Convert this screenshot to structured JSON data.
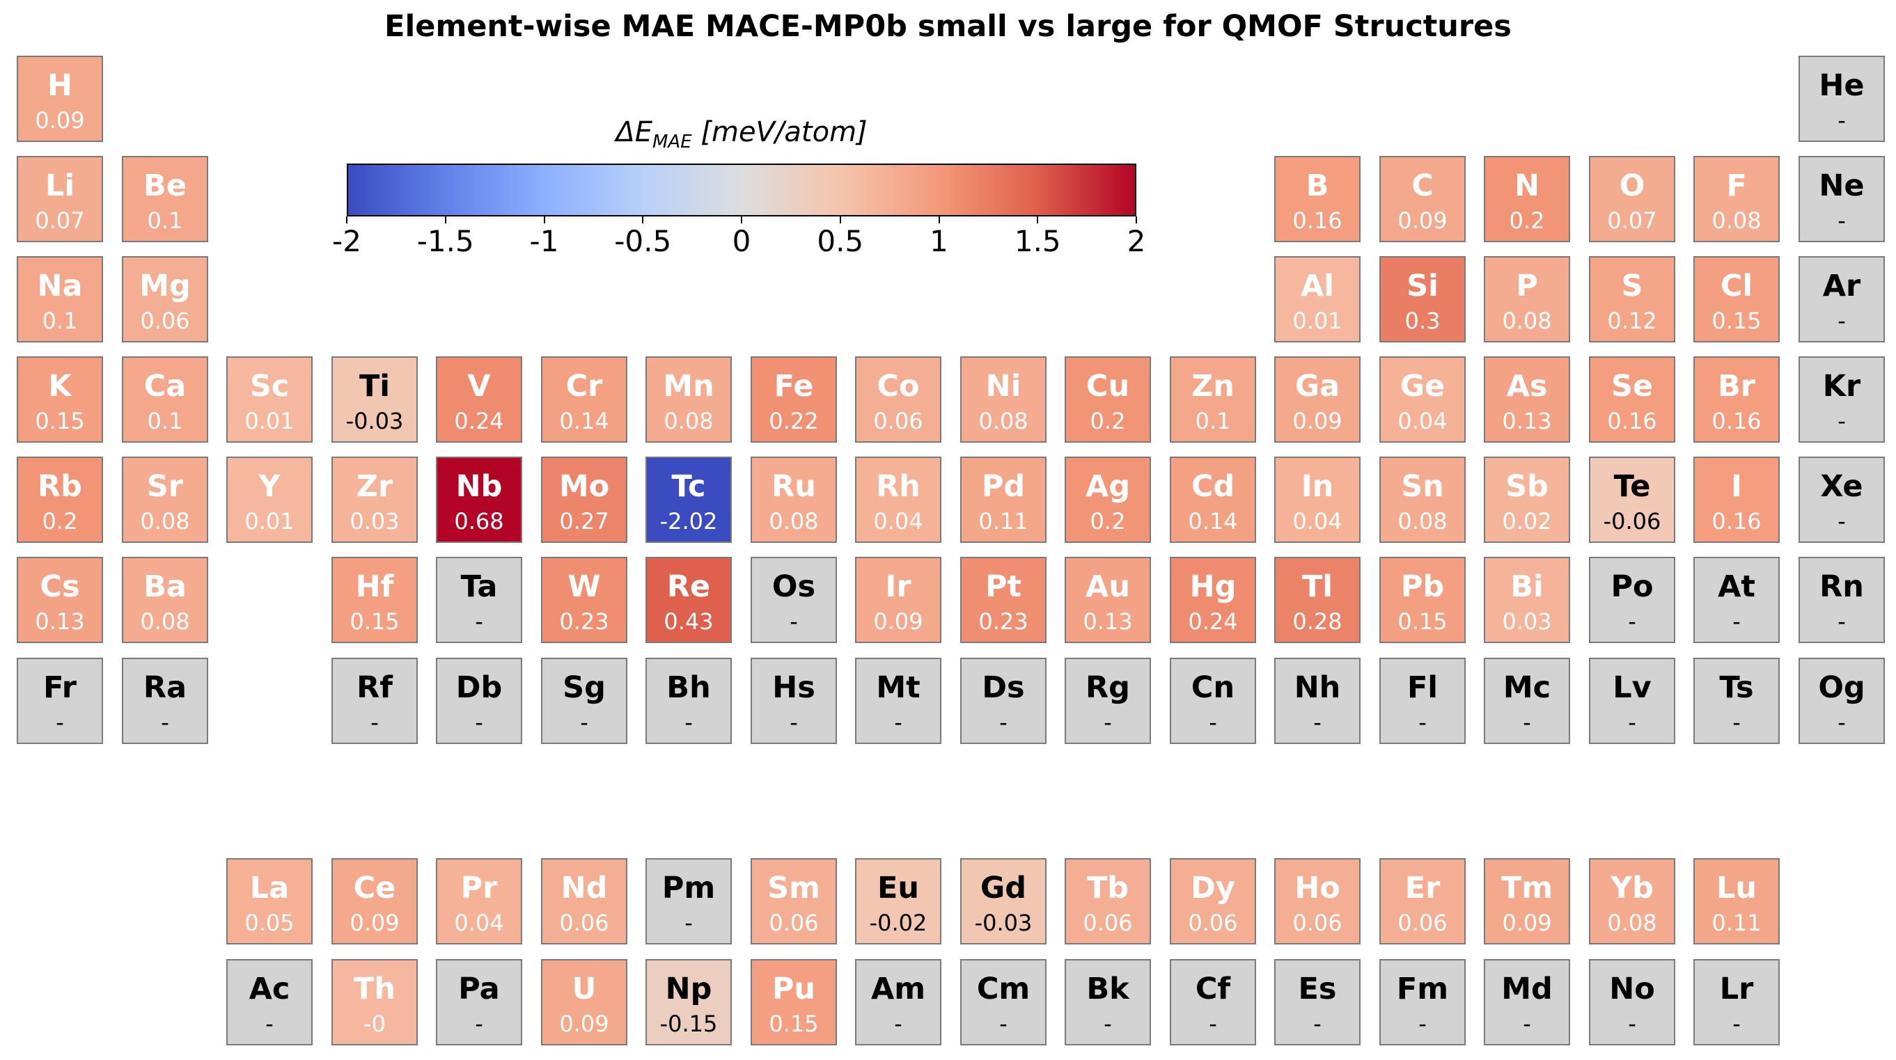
{
  "chart_data": {
    "type": "heatmap",
    "title": "Element-wise MAE MACE-MP0b small vs large for QMOF Structures",
    "colorbar": {
      "label_prefix": "ΔE",
      "label_subscript": "MAE",
      "label_unit": "[meV/atom]",
      "range": [
        -2,
        2
      ],
      "ticks": [
        -2,
        -1.5,
        -1,
        -0.5,
        0,
        0.5,
        1,
        1.5,
        2
      ],
      "tick_labels": [
        "-2",
        "-1.5",
        "-1",
        "-0.5",
        "0",
        "0.5",
        "1",
        "1.5",
        "2"
      ],
      "colormap": "coolwarm",
      "missing_color": "#d3d3d3"
    },
    "elements": [
      {
        "symbol": "H",
        "row": 1,
        "col": 1,
        "value": 0.09,
        "label": "0.09"
      },
      {
        "symbol": "He",
        "row": 1,
        "col": 18,
        "value": null,
        "label": "-"
      },
      {
        "symbol": "Li",
        "row": 2,
        "col": 1,
        "value": 0.07,
        "label": "0.07"
      },
      {
        "symbol": "Be",
        "row": 2,
        "col": 2,
        "value": 0.1,
        "label": "0.1"
      },
      {
        "symbol": "B",
        "row": 2,
        "col": 13,
        "value": 0.16,
        "label": "0.16"
      },
      {
        "symbol": "C",
        "row": 2,
        "col": 14,
        "value": 0.09,
        "label": "0.09"
      },
      {
        "symbol": "N",
        "row": 2,
        "col": 15,
        "value": 0.2,
        "label": "0.2"
      },
      {
        "symbol": "O",
        "row": 2,
        "col": 16,
        "value": 0.07,
        "label": "0.07"
      },
      {
        "symbol": "F",
        "row": 2,
        "col": 17,
        "value": 0.08,
        "label": "0.08"
      },
      {
        "symbol": "Ne",
        "row": 2,
        "col": 18,
        "value": null,
        "label": "-"
      },
      {
        "symbol": "Na",
        "row": 3,
        "col": 1,
        "value": 0.1,
        "label": "0.1"
      },
      {
        "symbol": "Mg",
        "row": 3,
        "col": 2,
        "value": 0.06,
        "label": "0.06"
      },
      {
        "symbol": "Al",
        "row": 3,
        "col": 13,
        "value": 0.01,
        "label": "0.01"
      },
      {
        "symbol": "Si",
        "row": 3,
        "col": 14,
        "value": 0.3,
        "label": "0.3"
      },
      {
        "symbol": "P",
        "row": 3,
        "col": 15,
        "value": 0.08,
        "label": "0.08"
      },
      {
        "symbol": "S",
        "row": 3,
        "col": 16,
        "value": 0.12,
        "label": "0.12"
      },
      {
        "symbol": "Cl",
        "row": 3,
        "col": 17,
        "value": 0.15,
        "label": "0.15"
      },
      {
        "symbol": "Ar",
        "row": 3,
        "col": 18,
        "value": null,
        "label": "-"
      },
      {
        "symbol": "K",
        "row": 4,
        "col": 1,
        "value": 0.15,
        "label": "0.15"
      },
      {
        "symbol": "Ca",
        "row": 4,
        "col": 2,
        "value": 0.1,
        "label": "0.1"
      },
      {
        "symbol": "Sc",
        "row": 4,
        "col": 3,
        "value": 0.01,
        "label": "0.01"
      },
      {
        "symbol": "Ti",
        "row": 4,
        "col": 4,
        "value": -0.03,
        "label": "-0.03"
      },
      {
        "symbol": "V",
        "row": 4,
        "col": 5,
        "value": 0.24,
        "label": "0.24"
      },
      {
        "symbol": "Cr",
        "row": 4,
        "col": 6,
        "value": 0.14,
        "label": "0.14"
      },
      {
        "symbol": "Mn",
        "row": 4,
        "col": 7,
        "value": 0.08,
        "label": "0.08"
      },
      {
        "symbol": "Fe",
        "row": 4,
        "col": 8,
        "value": 0.22,
        "label": "0.22"
      },
      {
        "symbol": "Co",
        "row": 4,
        "col": 9,
        "value": 0.06,
        "label": "0.06"
      },
      {
        "symbol": "Ni",
        "row": 4,
        "col": 10,
        "value": 0.08,
        "label": "0.08"
      },
      {
        "symbol": "Cu",
        "row": 4,
        "col": 11,
        "value": 0.2,
        "label": "0.2"
      },
      {
        "symbol": "Zn",
        "row": 4,
        "col": 12,
        "value": 0.1,
        "label": "0.1"
      },
      {
        "symbol": "Ga",
        "row": 4,
        "col": 13,
        "value": 0.09,
        "label": "0.09"
      },
      {
        "symbol": "Ge",
        "row": 4,
        "col": 14,
        "value": 0.04,
        "label": "0.04"
      },
      {
        "symbol": "As",
        "row": 4,
        "col": 15,
        "value": 0.13,
        "label": "0.13"
      },
      {
        "symbol": "Se",
        "row": 4,
        "col": 16,
        "value": 0.16,
        "label": "0.16"
      },
      {
        "symbol": "Br",
        "row": 4,
        "col": 17,
        "value": 0.16,
        "label": "0.16"
      },
      {
        "symbol": "Kr",
        "row": 4,
        "col": 18,
        "value": null,
        "label": "-"
      },
      {
        "symbol": "Rb",
        "row": 5,
        "col": 1,
        "value": 0.2,
        "label": "0.2"
      },
      {
        "symbol": "Sr",
        "row": 5,
        "col": 2,
        "value": 0.08,
        "label": "0.08"
      },
      {
        "symbol": "Y",
        "row": 5,
        "col": 3,
        "value": 0.01,
        "label": "0.01"
      },
      {
        "symbol": "Zr",
        "row": 5,
        "col": 4,
        "value": 0.03,
        "label": "0.03"
      },
      {
        "symbol": "Nb",
        "row": 5,
        "col": 5,
        "value": 0.68,
        "label": "0.68"
      },
      {
        "symbol": "Mo",
        "row": 5,
        "col": 6,
        "value": 0.27,
        "label": "0.27"
      },
      {
        "symbol": "Tc",
        "row": 5,
        "col": 7,
        "value": -2.02,
        "label": "-2.02"
      },
      {
        "symbol": "Ru",
        "row": 5,
        "col": 8,
        "value": 0.08,
        "label": "0.08"
      },
      {
        "symbol": "Rh",
        "row": 5,
        "col": 9,
        "value": 0.04,
        "label": "0.04"
      },
      {
        "symbol": "Pd",
        "row": 5,
        "col": 10,
        "value": 0.11,
        "label": "0.11"
      },
      {
        "symbol": "Ag",
        "row": 5,
        "col": 11,
        "value": 0.2,
        "label": "0.2"
      },
      {
        "symbol": "Cd",
        "row": 5,
        "col": 12,
        "value": 0.14,
        "label": "0.14"
      },
      {
        "symbol": "In",
        "row": 5,
        "col": 13,
        "value": 0.04,
        "label": "0.04"
      },
      {
        "symbol": "Sn",
        "row": 5,
        "col": 14,
        "value": 0.08,
        "label": "0.08"
      },
      {
        "symbol": "Sb",
        "row": 5,
        "col": 15,
        "value": 0.02,
        "label": "0.02"
      },
      {
        "symbol": "Te",
        "row": 5,
        "col": 16,
        "value": -0.06,
        "label": "-0.06"
      },
      {
        "symbol": "I",
        "row": 5,
        "col": 17,
        "value": 0.16,
        "label": "0.16"
      },
      {
        "symbol": "Xe",
        "row": 5,
        "col": 18,
        "value": null,
        "label": "-"
      },
      {
        "symbol": "Cs",
        "row": 6,
        "col": 1,
        "value": 0.13,
        "label": "0.13"
      },
      {
        "symbol": "Ba",
        "row": 6,
        "col": 2,
        "value": 0.08,
        "label": "0.08"
      },
      {
        "symbol": "Hf",
        "row": 6,
        "col": 4,
        "value": 0.15,
        "label": "0.15"
      },
      {
        "symbol": "Ta",
        "row": 6,
        "col": 5,
        "value": null,
        "label": "-"
      },
      {
        "symbol": "W",
        "row": 6,
        "col": 6,
        "value": 0.23,
        "label": "0.23"
      },
      {
        "symbol": "Re",
        "row": 6,
        "col": 7,
        "value": 0.43,
        "label": "0.43"
      },
      {
        "symbol": "Os",
        "row": 6,
        "col": 8,
        "value": null,
        "label": "-"
      },
      {
        "symbol": "Ir",
        "row": 6,
        "col": 9,
        "value": 0.09,
        "label": "0.09"
      },
      {
        "symbol": "Pt",
        "row": 6,
        "col": 10,
        "value": 0.23,
        "label": "0.23"
      },
      {
        "symbol": "Au",
        "row": 6,
        "col": 11,
        "value": 0.13,
        "label": "0.13"
      },
      {
        "symbol": "Hg",
        "row": 6,
        "col": 12,
        "value": 0.24,
        "label": "0.24"
      },
      {
        "symbol": "Tl",
        "row": 6,
        "col": 13,
        "value": 0.28,
        "label": "0.28"
      },
      {
        "symbol": "Pb",
        "row": 6,
        "col": 14,
        "value": 0.15,
        "label": "0.15"
      },
      {
        "symbol": "Bi",
        "row": 6,
        "col": 15,
        "value": 0.03,
        "label": "0.03"
      },
      {
        "symbol": "Po",
        "row": 6,
        "col": 16,
        "value": null,
        "label": "-"
      },
      {
        "symbol": "At",
        "row": 6,
        "col": 17,
        "value": null,
        "label": "-"
      },
      {
        "symbol": "Rn",
        "row": 6,
        "col": 18,
        "value": null,
        "label": "-"
      },
      {
        "symbol": "Fr",
        "row": 7,
        "col": 1,
        "value": null,
        "label": "-"
      },
      {
        "symbol": "Ra",
        "row": 7,
        "col": 2,
        "value": null,
        "label": "-"
      },
      {
        "symbol": "Rf",
        "row": 7,
        "col": 4,
        "value": null,
        "label": "-"
      },
      {
        "symbol": "Db",
        "row": 7,
        "col": 5,
        "value": null,
        "label": "-"
      },
      {
        "symbol": "Sg",
        "row": 7,
        "col": 6,
        "value": null,
        "label": "-"
      },
      {
        "symbol": "Bh",
        "row": 7,
        "col": 7,
        "value": null,
        "label": "-"
      },
      {
        "symbol": "Hs",
        "row": 7,
        "col": 8,
        "value": null,
        "label": "-"
      },
      {
        "symbol": "Mt",
        "row": 7,
        "col": 9,
        "value": null,
        "label": "-"
      },
      {
        "symbol": "Ds",
        "row": 7,
        "col": 10,
        "value": null,
        "label": "-"
      },
      {
        "symbol": "Rg",
        "row": 7,
        "col": 11,
        "value": null,
        "label": "-"
      },
      {
        "symbol": "Cn",
        "row": 7,
        "col": 12,
        "value": null,
        "label": "-"
      },
      {
        "symbol": "Nh",
        "row": 7,
        "col": 13,
        "value": null,
        "label": "-"
      },
      {
        "symbol": "Fl",
        "row": 7,
        "col": 14,
        "value": null,
        "label": "-"
      },
      {
        "symbol": "Mc",
        "row": 7,
        "col": 15,
        "value": null,
        "label": "-"
      },
      {
        "symbol": "Lv",
        "row": 7,
        "col": 16,
        "value": null,
        "label": "-"
      },
      {
        "symbol": "Ts",
        "row": 7,
        "col": 17,
        "value": null,
        "label": "-"
      },
      {
        "symbol": "Og",
        "row": 7,
        "col": 18,
        "value": null,
        "label": "-"
      },
      {
        "symbol": "La",
        "row": 9,
        "col": 3,
        "value": 0.05,
        "label": "0.05"
      },
      {
        "symbol": "Ce",
        "row": 9,
        "col": 4,
        "value": 0.09,
        "label": "0.09"
      },
      {
        "symbol": "Pr",
        "row": 9,
        "col": 5,
        "value": 0.04,
        "label": "0.04"
      },
      {
        "symbol": "Nd",
        "row": 9,
        "col": 6,
        "value": 0.06,
        "label": "0.06"
      },
      {
        "symbol": "Pm",
        "row": 9,
        "col": 7,
        "value": null,
        "label": "-"
      },
      {
        "symbol": "Sm",
        "row": 9,
        "col": 8,
        "value": 0.06,
        "label": "0.06"
      },
      {
        "symbol": "Eu",
        "row": 9,
        "col": 9,
        "value": -0.02,
        "label": "-0.02"
      },
      {
        "symbol": "Gd",
        "row": 9,
        "col": 10,
        "value": -0.03,
        "label": "-0.03"
      },
      {
        "symbol": "Tb",
        "row": 9,
        "col": 11,
        "value": 0.06,
        "label": "0.06"
      },
      {
        "symbol": "Dy",
        "row": 9,
        "col": 12,
        "value": 0.06,
        "label": "0.06"
      },
      {
        "symbol": "Ho",
        "row": 9,
        "col": 13,
        "value": 0.06,
        "label": "0.06"
      },
      {
        "symbol": "Er",
        "row": 9,
        "col": 14,
        "value": 0.06,
        "label": "0.06"
      },
      {
        "symbol": "Tm",
        "row": 9,
        "col": 15,
        "value": 0.09,
        "label": "0.09"
      },
      {
        "symbol": "Yb",
        "row": 9,
        "col": 16,
        "value": 0.08,
        "label": "0.08"
      },
      {
        "symbol": "Lu",
        "row": 9,
        "col": 17,
        "value": 0.11,
        "label": "0.11"
      },
      {
        "symbol": "Ac",
        "row": 10,
        "col": 3,
        "value": null,
        "label": "-"
      },
      {
        "symbol": "Th",
        "row": 10,
        "col": 4,
        "value": -0.0,
        "label": "-0"
      },
      {
        "symbol": "Pa",
        "row": 10,
        "col": 5,
        "value": null,
        "label": "-"
      },
      {
        "symbol": "U",
        "row": 10,
        "col": 6,
        "value": 0.09,
        "label": "0.09"
      },
      {
        "symbol": "Np",
        "row": 10,
        "col": 7,
        "value": -0.15,
        "label": "-0.15"
      },
      {
        "symbol": "Pu",
        "row": 10,
        "col": 8,
        "value": 0.15,
        "label": "0.15"
      },
      {
        "symbol": "Am",
        "row": 10,
        "col": 9,
        "value": null,
        "label": "-"
      },
      {
        "symbol": "Cm",
        "row": 10,
        "col": 10,
        "value": null,
        "label": "-"
      },
      {
        "symbol": "Bk",
        "row": 10,
        "col": 11,
        "value": null,
        "label": "-"
      },
      {
        "symbol": "Cf",
        "row": 10,
        "col": 12,
        "value": null,
        "label": "-"
      },
      {
        "symbol": "Es",
        "row": 10,
        "col": 13,
        "value": null,
        "label": "-"
      },
      {
        "symbol": "Fm",
        "row": 10,
        "col": 14,
        "value": null,
        "label": "-"
      },
      {
        "symbol": "Md",
        "row": 10,
        "col": 15,
        "value": null,
        "label": "-"
      },
      {
        "symbol": "No",
        "row": 10,
        "col": 16,
        "value": null,
        "label": "-"
      },
      {
        "symbol": "Lr",
        "row": 10,
        "col": 17,
        "value": null,
        "label": "-"
      }
    ]
  }
}
